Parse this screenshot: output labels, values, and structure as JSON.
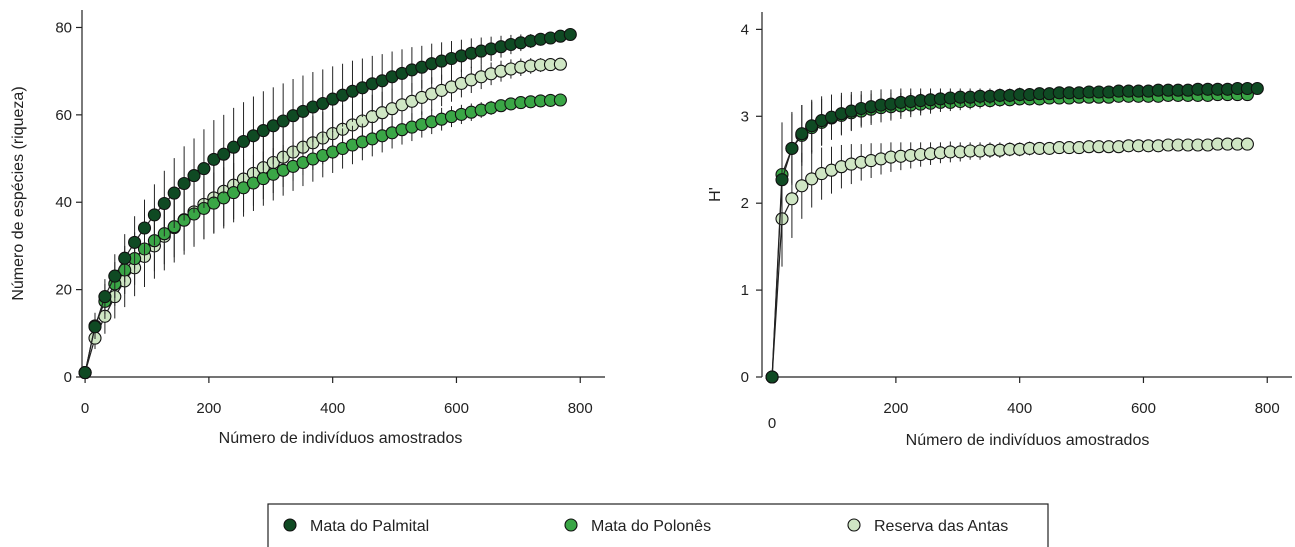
{
  "colors": {
    "Mata do Palmital": "#0f4a23",
    "Mata do Polonês": "#3aa646",
    "Reserva das Antas": "#cfe6c4"
  },
  "legend": {
    "placement": "bottom-center",
    "items": [
      "Mata do Palmital",
      "Mata do Polonês",
      "Reserva das Antas"
    ]
  },
  "chart_data": [
    {
      "type": "scatter",
      "title": "",
      "xlabel": "Número de indivíduos amostrados",
      "ylabel": "Número de espécies (riqueza)",
      "xlim": [
        -5,
        840
      ],
      "ylim": [
        0,
        84
      ],
      "xticks": [
        "0",
        "200",
        "400",
        "600",
        "800"
      ],
      "yticks": [
        "0",
        "20",
        "40",
        "60",
        "80"
      ],
      "grid": false,
      "series": [
        {
          "name": "Mata do Palmital",
          "x": [
            0,
            16,
            32,
            48,
            64,
            80,
            96,
            112,
            128,
            144,
            160,
            176,
            192,
            208,
            224,
            240,
            256,
            272,
            288,
            304,
            320,
            336,
            352,
            368,
            384,
            400,
            416,
            432,
            448,
            464,
            480,
            496,
            512,
            528,
            544,
            560,
            576,
            592,
            608,
            624,
            640,
            656,
            672,
            688,
            704,
            720,
            736,
            752,
            768,
            784
          ],
          "y": [
            1,
            11.5,
            18.4,
            23.1,
            27.2,
            30.8,
            34.1,
            37.1,
            39.7,
            42.1,
            44.3,
            46.1,
            47.7,
            49.8,
            51.0,
            52.6,
            53.9,
            55.2,
            56.4,
            57.5,
            58.6,
            59.8,
            60.8,
            61.8,
            62.6,
            63.6,
            64.5,
            65.4,
            66.2,
            67.1,
            67.8,
            68.7,
            69.5,
            70.3,
            70.9,
            71.7,
            72.3,
            72.9,
            73.5,
            74.1,
            74.6,
            75.1,
            75.6,
            76.1,
            76.5,
            76.9,
            77.3,
            77.6,
            78.0,
            78.4
          ],
          "err": [
            0,
            2.5,
            4,
            5,
            5.5,
            6,
            6.5,
            7,
            7.5,
            8,
            8.5,
            8.5,
            9,
            9,
            9,
            9,
            9,
            9,
            9,
            8.8,
            8.6,
            8.4,
            8.2,
            8,
            7.8,
            7.5,
            7.2,
            7,
            6.7,
            6.4,
            6.1,
            5.8,
            5.5,
            5.2,
            4.9,
            4.6,
            4.3,
            4,
            3.7,
            3.4,
            3.1,
            2.8,
            2.5,
            2.2,
            1.9,
            1.6,
            1.3,
            1,
            0.7,
            0.5
          ]
        },
        {
          "name": "Mata do Polonês",
          "x": [
            0,
            16,
            32,
            48,
            64,
            80,
            96,
            112,
            128,
            144,
            160,
            176,
            192,
            208,
            224,
            240,
            256,
            272,
            288,
            304,
            320,
            336,
            352,
            368,
            384,
            400,
            416,
            432,
            448,
            464,
            480,
            496,
            512,
            528,
            544,
            560,
            576,
            592,
            608,
            624,
            640,
            656,
            672,
            688,
            704,
            720,
            736,
            752,
            768
          ],
          "y": [
            1,
            11.7,
            17.3,
            21.3,
            24.5,
            27.1,
            29.3,
            31.2,
            32.8,
            34.4,
            35.9,
            37.3,
            38.6,
            39.8,
            41.0,
            42.2,
            43.3,
            44.4,
            45.4,
            46.4,
            47.3,
            48.2,
            49.1,
            49.9,
            50.7,
            51.5,
            52.3,
            53.1,
            53.8,
            54.5,
            55.2,
            55.9,
            56.6,
            57.2,
            57.8,
            58.4,
            59.0,
            59.6,
            60.1,
            60.6,
            61.1,
            61.6,
            62.1,
            62.5,
            62.8,
            63.0,
            63.2,
            63.3,
            63.4
          ],
          "err": [
            0,
            3,
            4,
            5,
            5.5,
            6,
            6.5,
            7,
            7,
            7,
            7,
            7,
            7,
            7,
            7,
            6.8,
            6.6,
            6.4,
            6.2,
            6,
            5.8,
            5.6,
            5.4,
            5.2,
            5,
            4.8,
            4.6,
            4.4,
            4.2,
            4,
            3.8,
            3.6,
            3.4,
            3.2,
            3,
            2.8,
            2.6,
            2.4,
            2.2,
            2,
            1.8,
            1.6,
            1.4,
            1.2,
            1,
            0.8,
            0.6,
            0.5,
            0.5
          ]
        },
        {
          "name": "Reserva das Antas",
          "x": [
            0,
            16,
            32,
            48,
            64,
            80,
            96,
            112,
            128,
            144,
            160,
            176,
            192,
            208,
            224,
            240,
            256,
            272,
            288,
            304,
            320,
            336,
            352,
            368,
            384,
            400,
            416,
            432,
            448,
            464,
            480,
            496,
            512,
            528,
            544,
            560,
            576,
            592,
            608,
            624,
            640,
            656,
            672,
            688,
            704,
            720,
            736,
            752,
            768
          ],
          "y": [
            1,
            8.9,
            13.9,
            18.4,
            22.0,
            25.0,
            27.6,
            30.0,
            32.2,
            34.2,
            36.0,
            37.8,
            39.5,
            41.0,
            42.5,
            43.9,
            45.3,
            46.6,
            47.9,
            49.1,
            50.3,
            51.5,
            52.6,
            53.6,
            54.7,
            55.7,
            56.7,
            57.7,
            58.6,
            59.6,
            60.5,
            61.4,
            62.3,
            63.1,
            64.0,
            64.8,
            65.6,
            66.4,
            67.2,
            68.0,
            68.7,
            69.4,
            70.0,
            70.5,
            70.9,
            71.2,
            71.4,
            71.5,
            71.6
          ],
          "err": [
            0,
            2.5,
            4,
            5,
            6,
            6.5,
            7,
            7.5,
            7.8,
            8,
            8,
            8,
            8,
            8,
            8,
            7.8,
            7.6,
            7.4,
            7.2,
            7,
            6.8,
            6.6,
            6.4,
            6.2,
            6,
            5.8,
            5.6,
            5.4,
            5.2,
            5,
            4.8,
            4.6,
            4.4,
            4.2,
            4,
            3.8,
            3.6,
            3.4,
            3.2,
            3,
            2.8,
            2.6,
            2.4,
            2.2,
            2,
            1.8,
            1.6,
            1.4,
            1.2
          ]
        }
      ]
    },
    {
      "type": "scatter",
      "title": "",
      "xlabel": "Número de indivíduos amostrados",
      "ylabel": "H'",
      "xlim": [
        -5,
        840
      ],
      "ylim": [
        0,
        4.2
      ],
      "xticks": [
        "0",
        "200",
        "400",
        "600",
        "800"
      ],
      "yticks": [
        "0",
        "1",
        "2",
        "3",
        "4"
      ],
      "grid": false,
      "series": [
        {
          "name": "Mata do Palmital",
          "x": [
            0,
            16,
            32,
            48,
            64,
            80,
            96,
            112,
            128,
            144,
            160,
            176,
            192,
            208,
            224,
            240,
            256,
            272,
            288,
            304,
            320,
            336,
            352,
            368,
            384,
            400,
            416,
            432,
            448,
            464,
            480,
            496,
            512,
            528,
            544,
            560,
            576,
            592,
            608,
            624,
            640,
            656,
            672,
            688,
            704,
            720,
            736,
            752,
            768,
            784
          ],
          "y": [
            0,
            2.27,
            2.63,
            2.8,
            2.89,
            2.95,
            2.99,
            3.03,
            3.06,
            3.09,
            3.11,
            3.13,
            3.14,
            3.16,
            3.17,
            3.18,
            3.19,
            3.2,
            3.21,
            3.22,
            3.22,
            3.23,
            3.23,
            3.24,
            3.24,
            3.25,
            3.25,
            3.26,
            3.26,
            3.27,
            3.27,
            3.27,
            3.28,
            3.28,
            3.28,
            3.29,
            3.29,
            3.29,
            3.29,
            3.3,
            3.3,
            3.3,
            3.3,
            3.31,
            3.31,
            3.31,
            3.31,
            3.32,
            3.32,
            3.32
          ],
          "err": [
            0,
            0.55,
            0.4,
            0.33,
            0.3,
            0.28,
            0.26,
            0.24,
            0.22,
            0.2,
            0.19,
            0.18,
            0.17,
            0.16,
            0.15,
            0.14,
            0.13,
            0.12,
            0.11,
            0.1,
            0.1,
            0.09,
            0.09,
            0.08,
            0.08,
            0.08,
            0.07,
            0.07,
            0.07,
            0.06,
            0.06,
            0.06,
            0.06,
            0.05,
            0.05,
            0.05,
            0.05,
            0.04,
            0.04,
            0.04,
            0.04,
            0.03,
            0.03,
            0.03,
            0.03,
            0.02,
            0.02,
            0.02,
            0.02,
            0.02
          ]
        },
        {
          "name": "Mata do Polonês",
          "x": [
            0,
            16,
            32,
            48,
            64,
            80,
            96,
            112,
            128,
            144,
            160,
            176,
            192,
            208,
            224,
            240,
            256,
            272,
            288,
            304,
            320,
            336,
            352,
            368,
            384,
            400,
            416,
            432,
            448,
            464,
            480,
            496,
            512,
            528,
            544,
            560,
            576,
            592,
            608,
            624,
            640,
            656,
            672,
            688,
            704,
            720,
            736,
            752,
            768
          ],
          "y": [
            0,
            2.33,
            2.63,
            2.78,
            2.87,
            2.93,
            2.98,
            3.01,
            3.04,
            3.06,
            3.08,
            3.1,
            3.11,
            3.12,
            3.13,
            3.14,
            3.15,
            3.16,
            3.16,
            3.17,
            3.17,
            3.18,
            3.18,
            3.19,
            3.19,
            3.2,
            3.2,
            3.2,
            3.21,
            3.21,
            3.21,
            3.22,
            3.22,
            3.22,
            3.22,
            3.23,
            3.23,
            3.23,
            3.23,
            3.23,
            3.24,
            3.24,
            3.24,
            3.24,
            3.24,
            3.25,
            3.25,
            3.25,
            3.25
          ],
          "err": [
            0,
            0.6,
            0.42,
            0.35,
            0.3,
            0.27,
            0.25,
            0.23,
            0.21,
            0.19,
            0.18,
            0.17,
            0.16,
            0.15,
            0.14,
            0.13,
            0.12,
            0.11,
            0.1,
            0.1,
            0.09,
            0.09,
            0.08,
            0.08,
            0.07,
            0.07,
            0.07,
            0.06,
            0.06,
            0.06,
            0.05,
            0.05,
            0.05,
            0.05,
            0.04,
            0.04,
            0.04,
            0.04,
            0.03,
            0.03,
            0.03,
            0.03,
            0.03,
            0.02,
            0.02,
            0.02,
            0.02,
            0.02,
            0.02
          ]
        },
        {
          "name": "Reserva das Antas",
          "x": [
            0,
            16,
            32,
            48,
            64,
            80,
            96,
            112,
            128,
            144,
            160,
            176,
            192,
            208,
            224,
            240,
            256,
            272,
            288,
            304,
            320,
            336,
            352,
            368,
            384,
            400,
            416,
            432,
            448,
            464,
            480,
            496,
            512,
            528,
            544,
            560,
            576,
            592,
            608,
            624,
            640,
            656,
            672,
            688,
            704,
            720,
            736,
            752,
            768
          ],
          "y": [
            0,
            1.82,
            2.05,
            2.2,
            2.28,
            2.34,
            2.38,
            2.42,
            2.45,
            2.47,
            2.49,
            2.51,
            2.53,
            2.54,
            2.55,
            2.56,
            2.57,
            2.58,
            2.59,
            2.59,
            2.6,
            2.6,
            2.61,
            2.61,
            2.62,
            2.62,
            2.63,
            2.63,
            2.63,
            2.64,
            2.64,
            2.64,
            2.65,
            2.65,
            2.65,
            2.65,
            2.66,
            2.66,
            2.66,
            2.66,
            2.67,
            2.67,
            2.67,
            2.67,
            2.67,
            2.68,
            2.68,
            2.68,
            2.68
          ],
          "err": [
            0,
            0.55,
            0.45,
            0.38,
            0.33,
            0.3,
            0.27,
            0.25,
            0.23,
            0.21,
            0.2,
            0.18,
            0.17,
            0.16,
            0.15,
            0.14,
            0.13,
            0.12,
            0.12,
            0.11,
            0.1,
            0.1,
            0.09,
            0.09,
            0.08,
            0.08,
            0.08,
            0.07,
            0.07,
            0.07,
            0.06,
            0.06,
            0.06,
            0.05,
            0.05,
            0.05,
            0.05,
            0.04,
            0.04,
            0.04,
            0.04,
            0.03,
            0.03,
            0.03,
            0.03,
            0.03,
            0.02,
            0.02,
            0.02
          ]
        }
      ]
    }
  ]
}
